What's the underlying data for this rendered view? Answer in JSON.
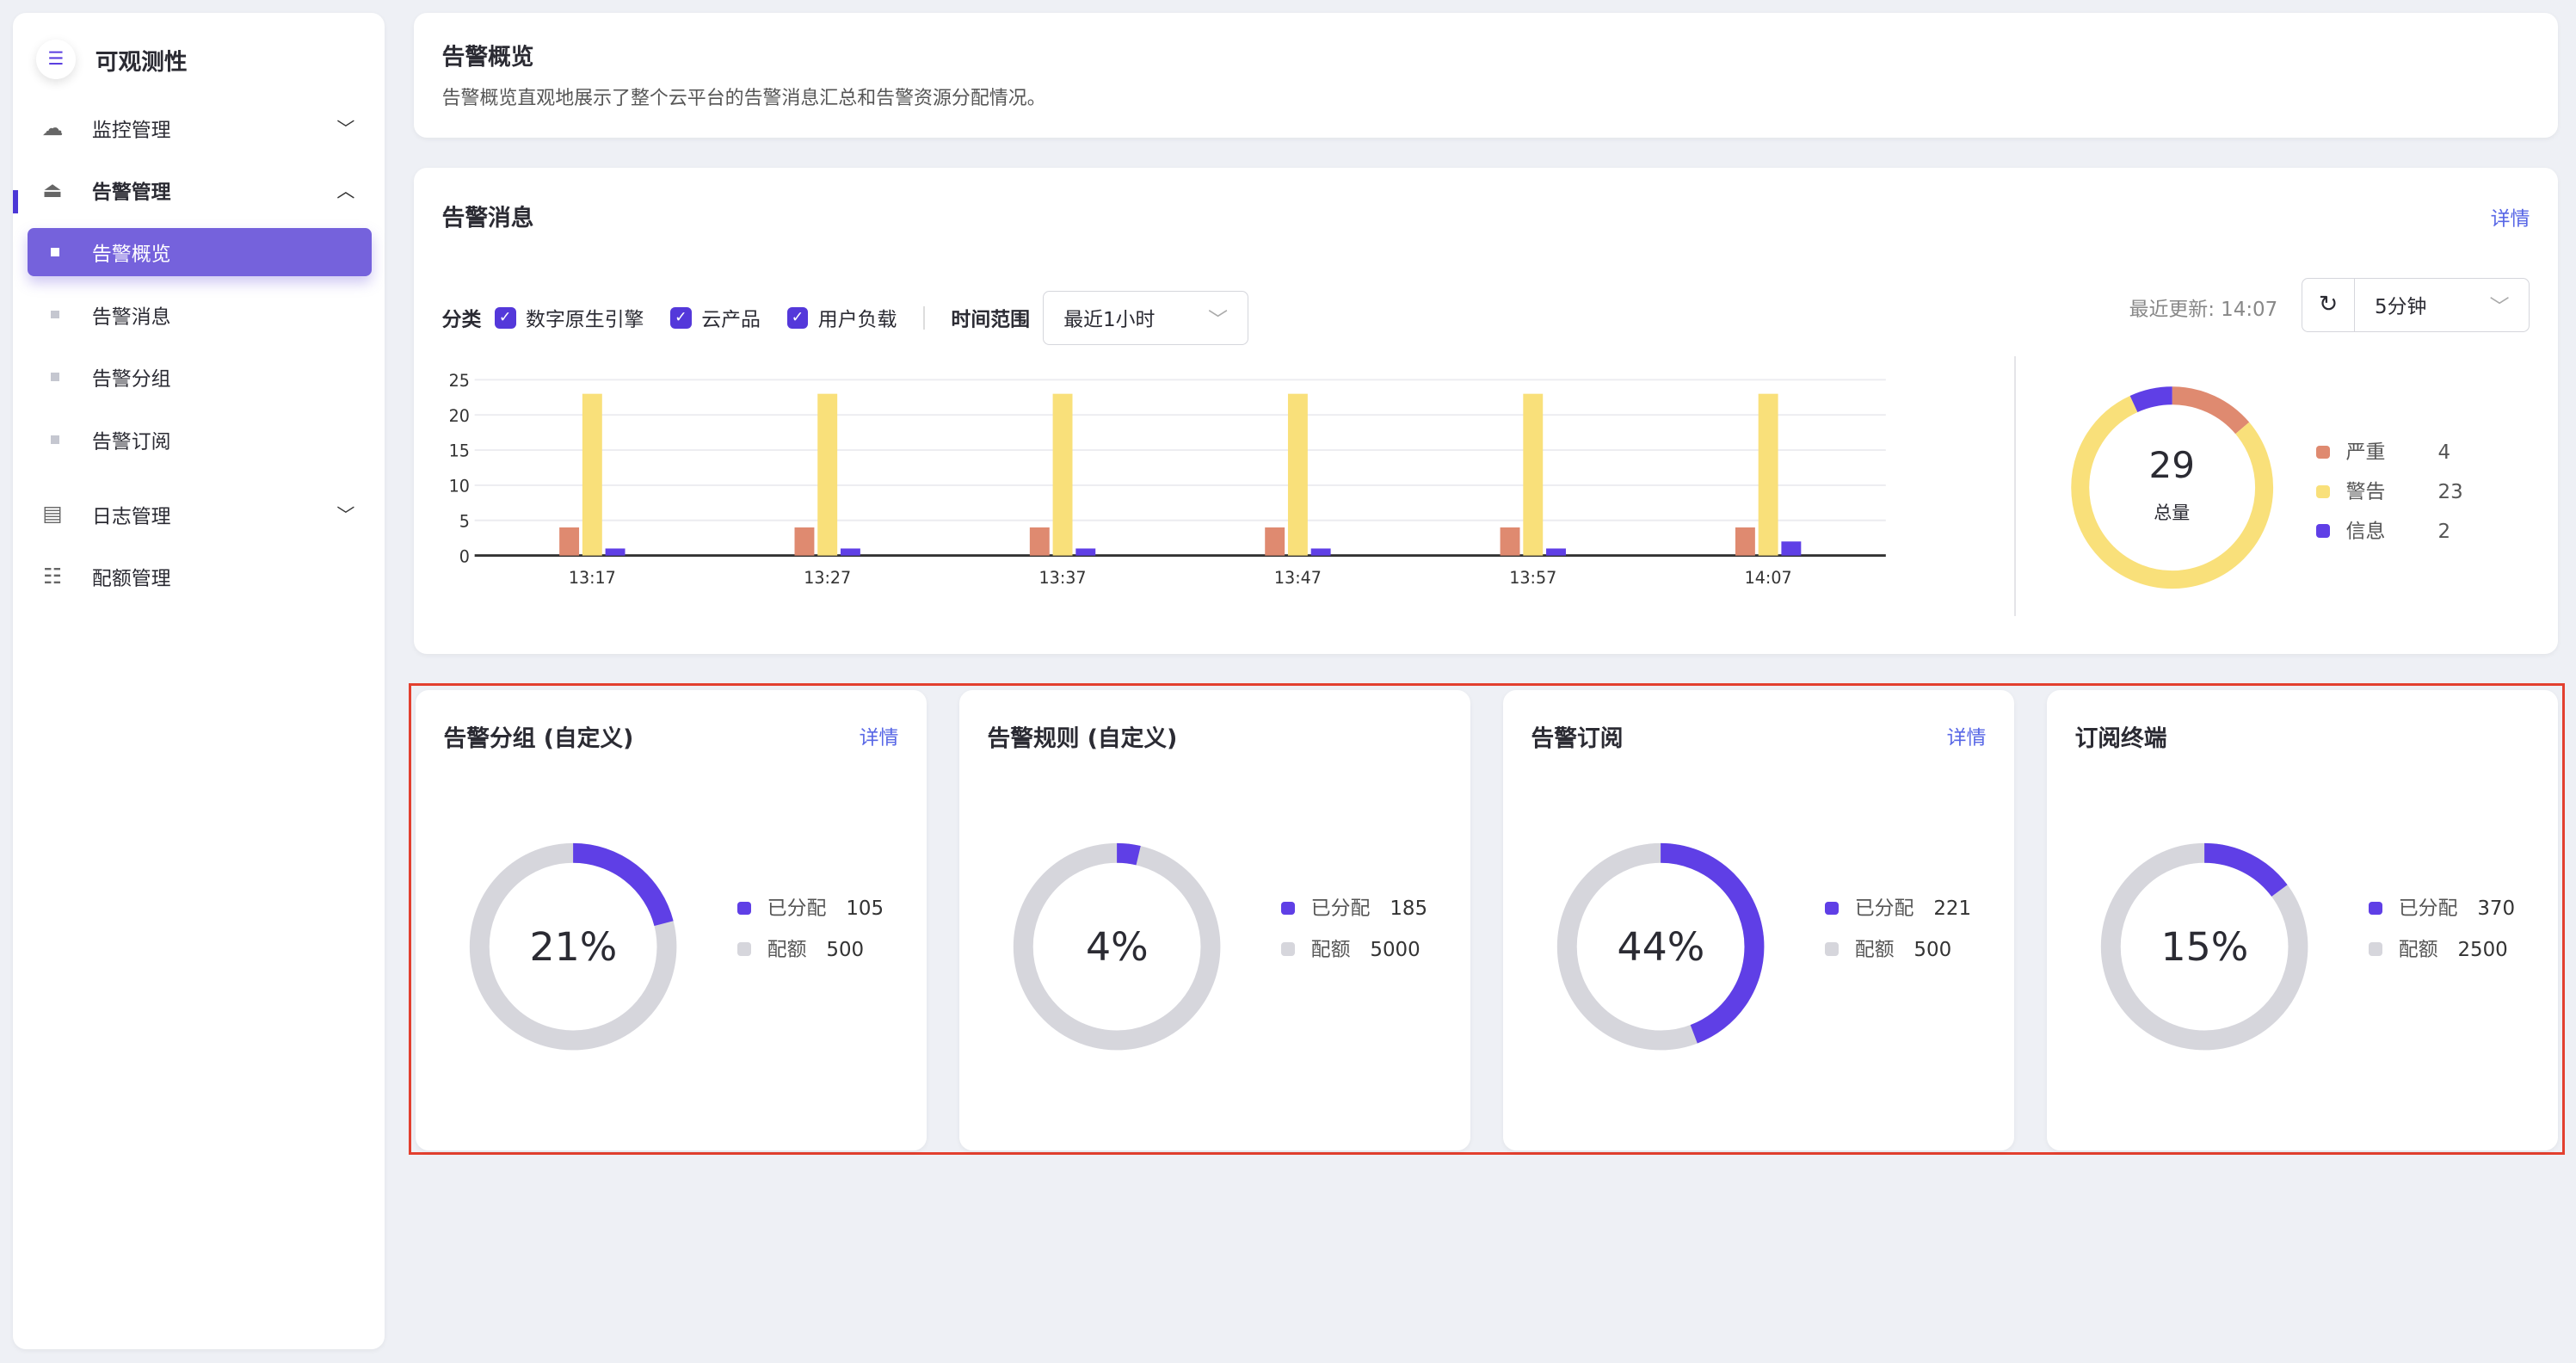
{
  "app": {
    "title": "可观测性",
    "toggle_icon": "menu-fold-icon"
  },
  "sidebar": {
    "items": [
      {
        "label": "监控管理",
        "icon": "cloud-monitor-icon",
        "expanded": false
      },
      {
        "label": "告警管理",
        "icon": "alarm-icon",
        "expanded": true,
        "children": [
          {
            "label": "告警概览",
            "active": true
          },
          {
            "label": "告警消息"
          },
          {
            "label": "告警分组"
          },
          {
            "label": "告警订阅"
          }
        ]
      },
      {
        "label": "日志管理",
        "icon": "log-settings-icon",
        "expanded": false
      },
      {
        "label": "配额管理",
        "icon": "quota-icon"
      }
    ]
  },
  "overview": {
    "title": "告警概览",
    "description": "告警概览直观地展示了整个云平台的告警消息汇总和告警资源分配情况。"
  },
  "messages": {
    "title": "告警消息",
    "detail_link": "详情",
    "category_label": "分类",
    "categories": [
      {
        "label": "数字原生引擎",
        "checked": true
      },
      {
        "label": "云产品",
        "checked": true
      },
      {
        "label": "用户负载",
        "checked": true
      }
    ],
    "time_range_label": "时间范围",
    "time_range_value": "最近1小时",
    "last_update": "最近更新: 14:07",
    "refresh_interval": "5分钟",
    "total_value": "29",
    "total_label": "总量"
  },
  "colors": {
    "critical": "#df8a70",
    "warning": "#f9e07a",
    "info": "#5f3fe6",
    "quota": "#d6d6dc",
    "accent": "#7562dc",
    "highlight": "#e3402f"
  },
  "chart_data": [
    {
      "type": "bar",
      "categories": [
        "13:17",
        "13:27",
        "13:37",
        "13:47",
        "13:57",
        "14:07"
      ],
      "series": [
        {
          "key": "critical",
          "values": [
            4,
            4,
            4,
            4,
            4,
            4
          ]
        },
        {
          "key": "warning",
          "values": [
            23,
            23,
            23,
            23,
            23,
            23
          ]
        },
        {
          "key": "info",
          "values": [
            1,
            1,
            1,
            1,
            1,
            2
          ]
        }
      ],
      "ylim": [
        0,
        25
      ],
      "yticks": [
        0,
        5,
        10,
        15,
        20,
        25
      ],
      "grid": true
    },
    {
      "type": "pie",
      "donut": true,
      "slices": [
        {
          "name": "严重",
          "value": 4,
          "key": "critical"
        },
        {
          "name": "警告",
          "value": 23,
          "key": "warning"
        },
        {
          "name": "信息",
          "value": 2,
          "key": "info"
        }
      ],
      "legend": "right"
    }
  ],
  "quotas": [
    {
      "title": "告警分组 (自定义)",
      "detail_link": "详情",
      "percent": "21%",
      "allocated_label": "已分配",
      "allocated": 105,
      "quota_label": "配额",
      "quota": 500
    },
    {
      "title": "告警规则 (自定义)",
      "percent": "4%",
      "allocated_label": "已分配",
      "allocated": 185,
      "quota_label": "配额",
      "quota": 5000
    },
    {
      "title": "告警订阅",
      "detail_link": "详情",
      "percent": "44%",
      "allocated_label": "已分配",
      "allocated": 221,
      "quota_label": "配额",
      "quota": 500
    },
    {
      "title": "订阅终端",
      "percent": "15%",
      "allocated_label": "已分配",
      "allocated": 370,
      "quota_label": "配额",
      "quota": 2500
    }
  ]
}
